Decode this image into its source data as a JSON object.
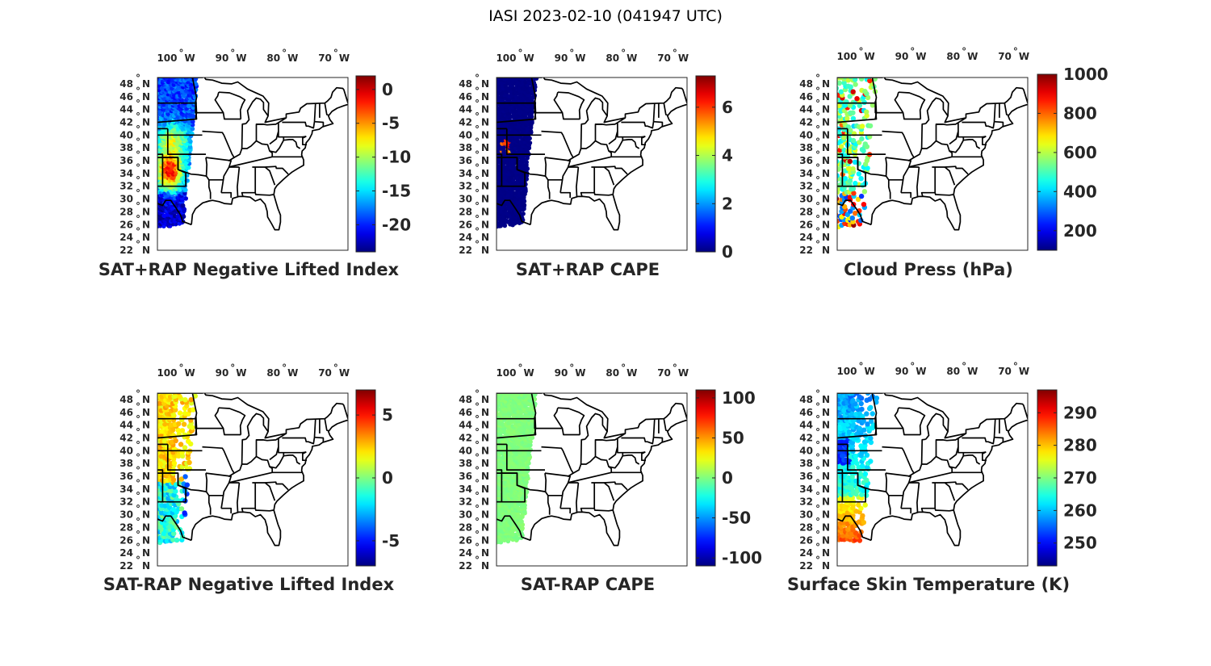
{
  "figure_title": "IASI 2023-02-10 (041947 UTC)",
  "lon_labels": [
    "100",
    "90",
    "80",
    "70"
  ],
  "lon_values": [
    -100,
    -90,
    -80,
    -70
  ],
  "lon_hemisphere": "W",
  "lat_labels": [
    "48",
    "46",
    "44",
    "42",
    "40",
    "38",
    "36",
    "34",
    "32",
    "30",
    "28",
    "26",
    "24",
    "22"
  ],
  "lat_values": [
    48,
    46,
    44,
    42,
    40,
    38,
    36,
    34,
    32,
    30,
    28,
    26,
    24,
    22
  ],
  "lat_hemisphere": "N",
  "degree_symbol": "°",
  "map_extent": {
    "lon_min": -104,
    "lon_max": -67,
    "lat_min": 22,
    "lat_max": 49
  },
  "panels": [
    {
      "title": "SAT+RAP Negative Lifted Index",
      "colormap": "jet",
      "range": [
        -24,
        2
      ],
      "ticks": [
        {
          "v": 0,
          "label": "0"
        },
        {
          "v": -5,
          "label": "-5"
        },
        {
          "v": -10,
          "label": "-10"
        },
        {
          "v": -15,
          "label": "-15"
        },
        {
          "v": -20,
          "label": "-20"
        }
      ],
      "field": "nli_full"
    },
    {
      "title": "SAT+RAP CAPE",
      "colormap": "jet",
      "range": [
        0,
        7.3
      ],
      "ticks": [
        {
          "v": 6,
          "label": "6"
        },
        {
          "v": 4,
          "label": "4"
        },
        {
          "v": 2,
          "label": "2"
        },
        {
          "v": 0,
          "label": "0"
        }
      ],
      "field": "cape_full"
    },
    {
      "title": "Cloud Press (hPa)",
      "colormap": "jet",
      "range": [
        100,
        1000
      ],
      "ticks": [
        {
          "v": 1000,
          "label": "1000"
        },
        {
          "v": 800,
          "label": "800"
        },
        {
          "v": 600,
          "label": "600"
        },
        {
          "v": 400,
          "label": "400"
        },
        {
          "v": 200,
          "label": "200"
        }
      ],
      "field": "cloud_press"
    },
    {
      "title": "SAT-RAP Negative Lifted Index",
      "colormap": "jet",
      "range": [
        -7,
        7
      ],
      "ticks": [
        {
          "v": 5,
          "label": "5"
        },
        {
          "v": 0,
          "label": "0"
        },
        {
          "v": -5,
          "label": "-5"
        }
      ],
      "field": "nli_diff"
    },
    {
      "title": "SAT-RAP CAPE",
      "colormap": "jet",
      "range": [
        -110,
        110
      ],
      "ticks": [
        {
          "v": 100,
          "label": "100"
        },
        {
          "v": 50,
          "label": "50"
        },
        {
          "v": 0,
          "label": "0"
        },
        {
          "v": -50,
          "label": "-50"
        },
        {
          "v": -100,
          "label": "-100"
        }
      ],
      "field": "cape_diff"
    },
    {
      "title": "Surface Skin Temperature (K)",
      "colormap": "jet",
      "range": [
        243,
        297
      ],
      "ticks": [
        {
          "v": 290,
          "label": "290"
        },
        {
          "v": 280,
          "label": "280"
        },
        {
          "v": 270,
          "label": "270"
        },
        {
          "v": 260,
          "label": "260"
        },
        {
          "v": 250,
          "label": "250"
        }
      ],
      "field": "skin_temp"
    }
  ]
}
